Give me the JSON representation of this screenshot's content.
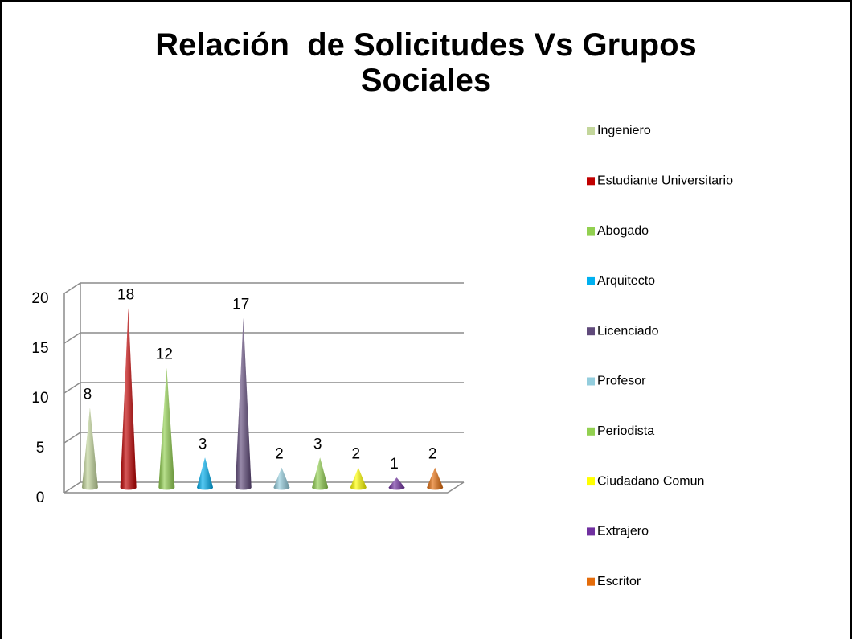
{
  "chart_data": {
    "type": "bar",
    "title": "Relación  de Solicitudes Vs Grupos Sociales",
    "categories": [
      "Ingeniero",
      "Estudiante Universitario",
      "Abogado",
      "Arquitecto",
      "Licenciado",
      "Profesor",
      "Periodista",
      "Ciudadano Comun",
      "Extrajero",
      "Escritor"
    ],
    "values": [
      8,
      18,
      12,
      3,
      17,
      2,
      3,
      2,
      1,
      2
    ],
    "colors": [
      "#c3d69b",
      "#c00000",
      "#92d050",
      "#00b0f0",
      "#604a7b",
      "#93cddd",
      "#92d050",
      "#ffff00",
      "#7030a0",
      "#e46c0a"
    ],
    "ylim": [
      0,
      20
    ],
    "yticks": [
      0,
      5,
      10,
      15,
      20
    ],
    "grid": true,
    "legend": "right"
  }
}
